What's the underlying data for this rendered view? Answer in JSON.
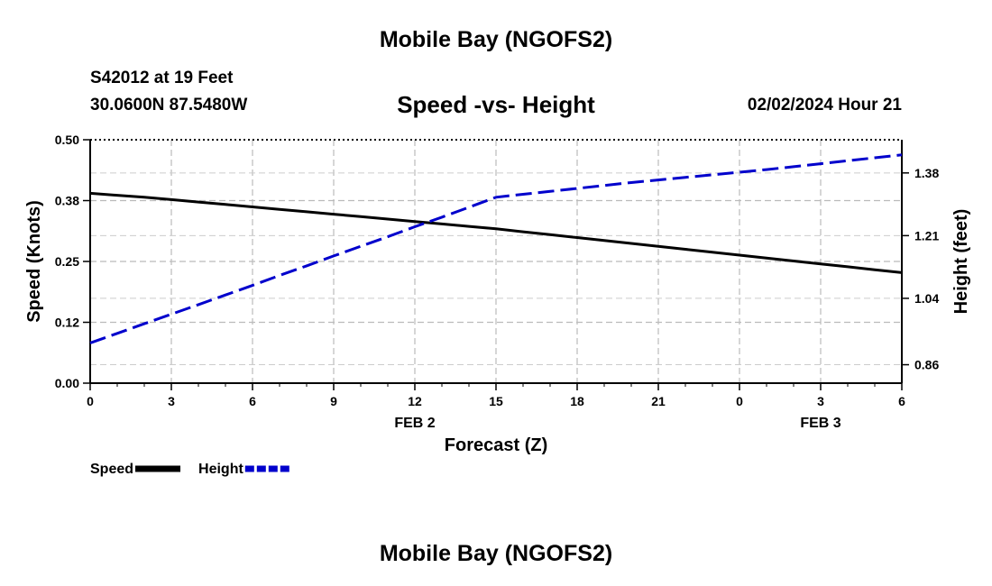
{
  "page": {
    "title": "Mobile Bay (NGOFS2)",
    "bottom_title": "Mobile Bay (NGOFS2)",
    "station": "S42012 at 19 Feet",
    "coords": "30.0600N  87.5480W",
    "chart_title": "Speed -vs- Height",
    "datestamp": "02/02/2024 Hour 21"
  },
  "chart_data": {
    "type": "line",
    "title": "Speed -vs- Height",
    "xlabel": "Forecast (Z)",
    "ylabel": "Speed (Knots)",
    "y2label": "Height (feet)",
    "x": [
      0,
      1,
      2,
      3,
      4,
      5,
      6,
      7,
      8,
      9,
      10,
      11,
      12,
      13,
      14,
      15,
      16,
      17,
      18,
      19,
      20,
      21,
      22,
      23,
      24,
      25,
      26,
      27,
      28,
      29,
      30
    ],
    "x_tick_labels": [
      "0",
      "3",
      "6",
      "9",
      "12",
      "15",
      "18",
      "21",
      "0",
      "3",
      "6"
    ],
    "date_labels": [
      {
        "label": "FEB 2",
        "at": 12
      },
      {
        "label": "FEB 3",
        "at": 27
      }
    ],
    "xlim": [
      0,
      30
    ],
    "ylim": [
      0,
      0.5
    ],
    "y2lim": [
      0.81,
      1.47
    ],
    "y_ticks": [
      "0.00",
      "0.12",
      "0.25",
      "0.38",
      "0.50"
    ],
    "y2_ticks": [
      "0.86",
      "1.04",
      "1.21",
      "1.38"
    ],
    "grid": true,
    "series": [
      {
        "name": "Speed",
        "color": "#000000",
        "axis": "left",
        "values": [
          0.39,
          0.386,
          0.382,
          0.377,
          0.372,
          0.367,
          0.362,
          0.357,
          0.352,
          0.347,
          0.342,
          0.337,
          0.332,
          0.327,
          0.322,
          0.317,
          0.311,
          0.305,
          0.299,
          0.293,
          0.287,
          0.281,
          0.275,
          0.269,
          0.263,
          0.257,
          0.251,
          0.245,
          0.239,
          0.233,
          0.227
        ]
      },
      {
        "name": "Height",
        "color": "#0000cc",
        "axis": "right",
        "values": [
          0.919,
          0.945,
          0.971,
          0.997,
          1.023,
          1.049,
          1.075,
          1.102,
          1.128,
          1.155,
          1.181,
          1.207,
          1.234,
          1.26,
          1.287,
          1.314,
          1.322,
          1.33,
          1.338,
          1.346,
          1.354,
          1.361,
          1.368,
          1.375,
          1.382,
          1.389,
          1.397,
          1.405,
          1.413,
          1.421,
          1.429
        ]
      }
    ]
  }
}
